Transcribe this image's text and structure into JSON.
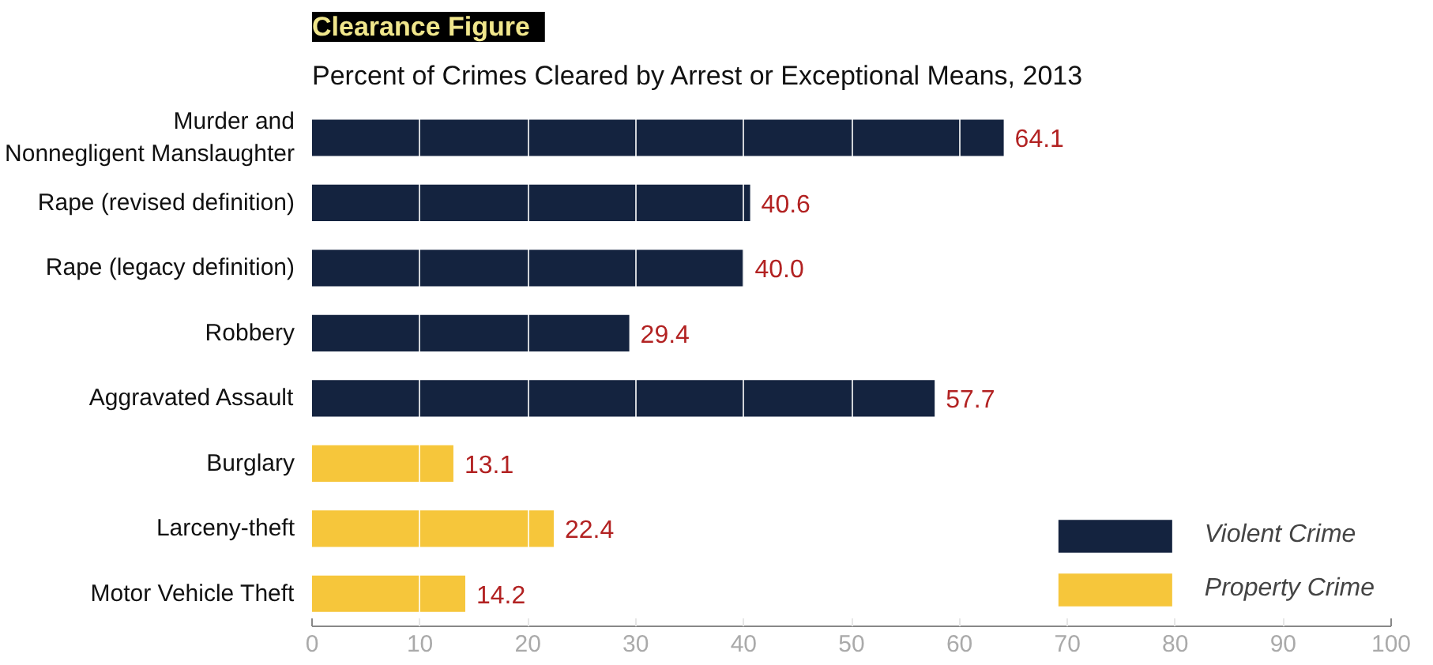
{
  "chart_data": {
    "type": "bar",
    "orientation": "horizontal",
    "title": "Clearance Figure",
    "subtitle": "Percent of Crimes Cleared by Arrest or Exceptional Means, 2013",
    "categories": [
      "Murder and\nNonnegligent Manslaughter",
      "Rape (revised definition)",
      "Rape (legacy definition)",
      "Robbery",
      "Aggravated Assault",
      "Burglary",
      "Larceny-theft",
      "Motor Vehicle Theft"
    ],
    "series": [
      {
        "name": "Violent Crime",
        "color": "#14233f",
        "values": [
          64.1,
          40.6,
          40.0,
          29.4,
          57.7,
          null,
          null,
          null
        ],
        "value_labels": [
          "64.1",
          "40.6",
          "40.0",
          "29.4",
          "57.7",
          null,
          null,
          null
        ]
      },
      {
        "name": "Property Crime",
        "color": "#f6c63b",
        "values": [
          null,
          null,
          null,
          null,
          null,
          13.1,
          22.4,
          14.2
        ],
        "value_labels": [
          null,
          null,
          null,
          null,
          null,
          "13.1",
          "22.4",
          "14.2"
        ]
      }
    ],
    "xlim": [
      0,
      100
    ],
    "xticks": [
      0,
      10,
      20,
      30,
      40,
      50,
      60,
      70,
      80,
      90,
      100
    ],
    "grid": "x",
    "legend": "bottom right"
  }
}
